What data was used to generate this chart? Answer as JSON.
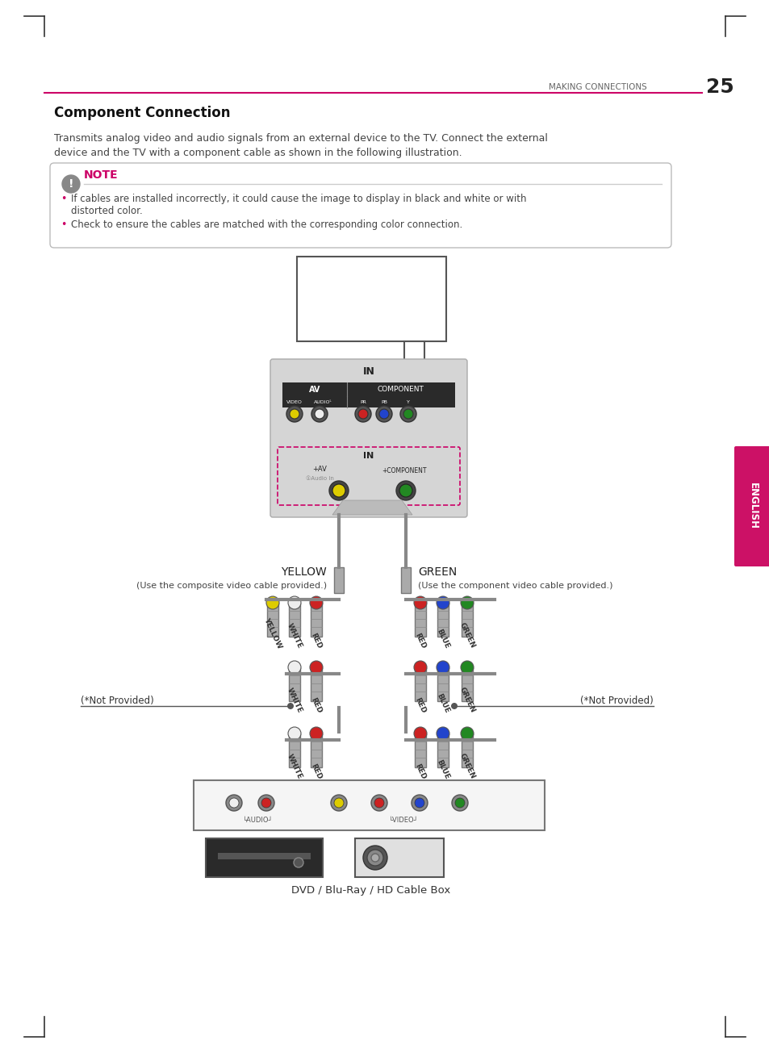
{
  "page_title": "MAKING CONNECTIONS",
  "page_number": "25",
  "section_title": "Component Connection",
  "description_line1": "Transmits analog video and audio signals from an external device to the TV. Connect the external",
  "description_line2": "device and the TV with a component cable as shown in the following illustration.",
  "note_label": "NOTE",
  "note_bullet1": "If cables are installed incorrectly, it could cause the image to display in black and white or with",
  "note_bullet1b": "distorted color.",
  "note_bullet2": "Check to ensure the cables are matched with the corresponding color connection.",
  "label_yellow": "YELLOW",
  "label_green": "GREEN",
  "label_composite": "(Use the composite video cable provided.)",
  "label_component": "(Use the component video cable provided.)",
  "label_not_provided_left": "(*Not Provided)",
  "label_not_provided_right": "(*Not Provided)",
  "label_dvd": "DVD / Blu-Ray / HD Cable Box",
  "english_label": "ENGLISH",
  "bg_color": "#ffffff",
  "accent_color": "#cc0066",
  "text_color": "#333333",
  "note_border_color": "#cccccc",
  "tab_color": "#cc1166"
}
